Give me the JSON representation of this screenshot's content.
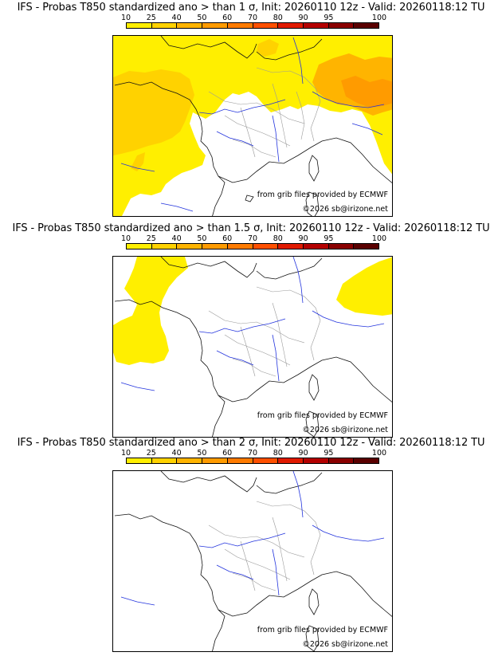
{
  "colorbar": {
    "labels": [
      "10",
      "25",
      "40",
      "50",
      "60",
      "70",
      "80",
      "90",
      "95",
      "100"
    ],
    "colors": [
      "#ffef00",
      "#ffd200",
      "#ffb400",
      "#ff9b00",
      "#ff7b00",
      "#ff5000",
      "#e01a00",
      "#b40000",
      "#8a0000",
      "#5a0000"
    ]
  },
  "panels": [
    {
      "title": "IFS - Probas T850  standardized ano > than 1 σ, Init: 20260110 12z - Valid: 20260118:12 TU",
      "credit_source": "from grib files provided by ECMWF",
      "credit_copyright": "©2026 sb@irizone.net"
    },
    {
      "title": "IFS - Probas T850  standardized ano > than 1.5 σ, Init: 20260110 12z - Valid: 20260118:12 TU",
      "credit_source": "from grib files provided by ECMWF",
      "credit_copyright": "©2026 sb@irizone.net"
    },
    {
      "title": "IFS - Probas T850  standardized ano > than 2 σ, Init: 20260110 12z - Valid: 20260118:12 TU",
      "credit_source": "from grib files provided by ECMWF",
      "credit_copyright": "©2026 sb@irizone.net"
    }
  ]
}
